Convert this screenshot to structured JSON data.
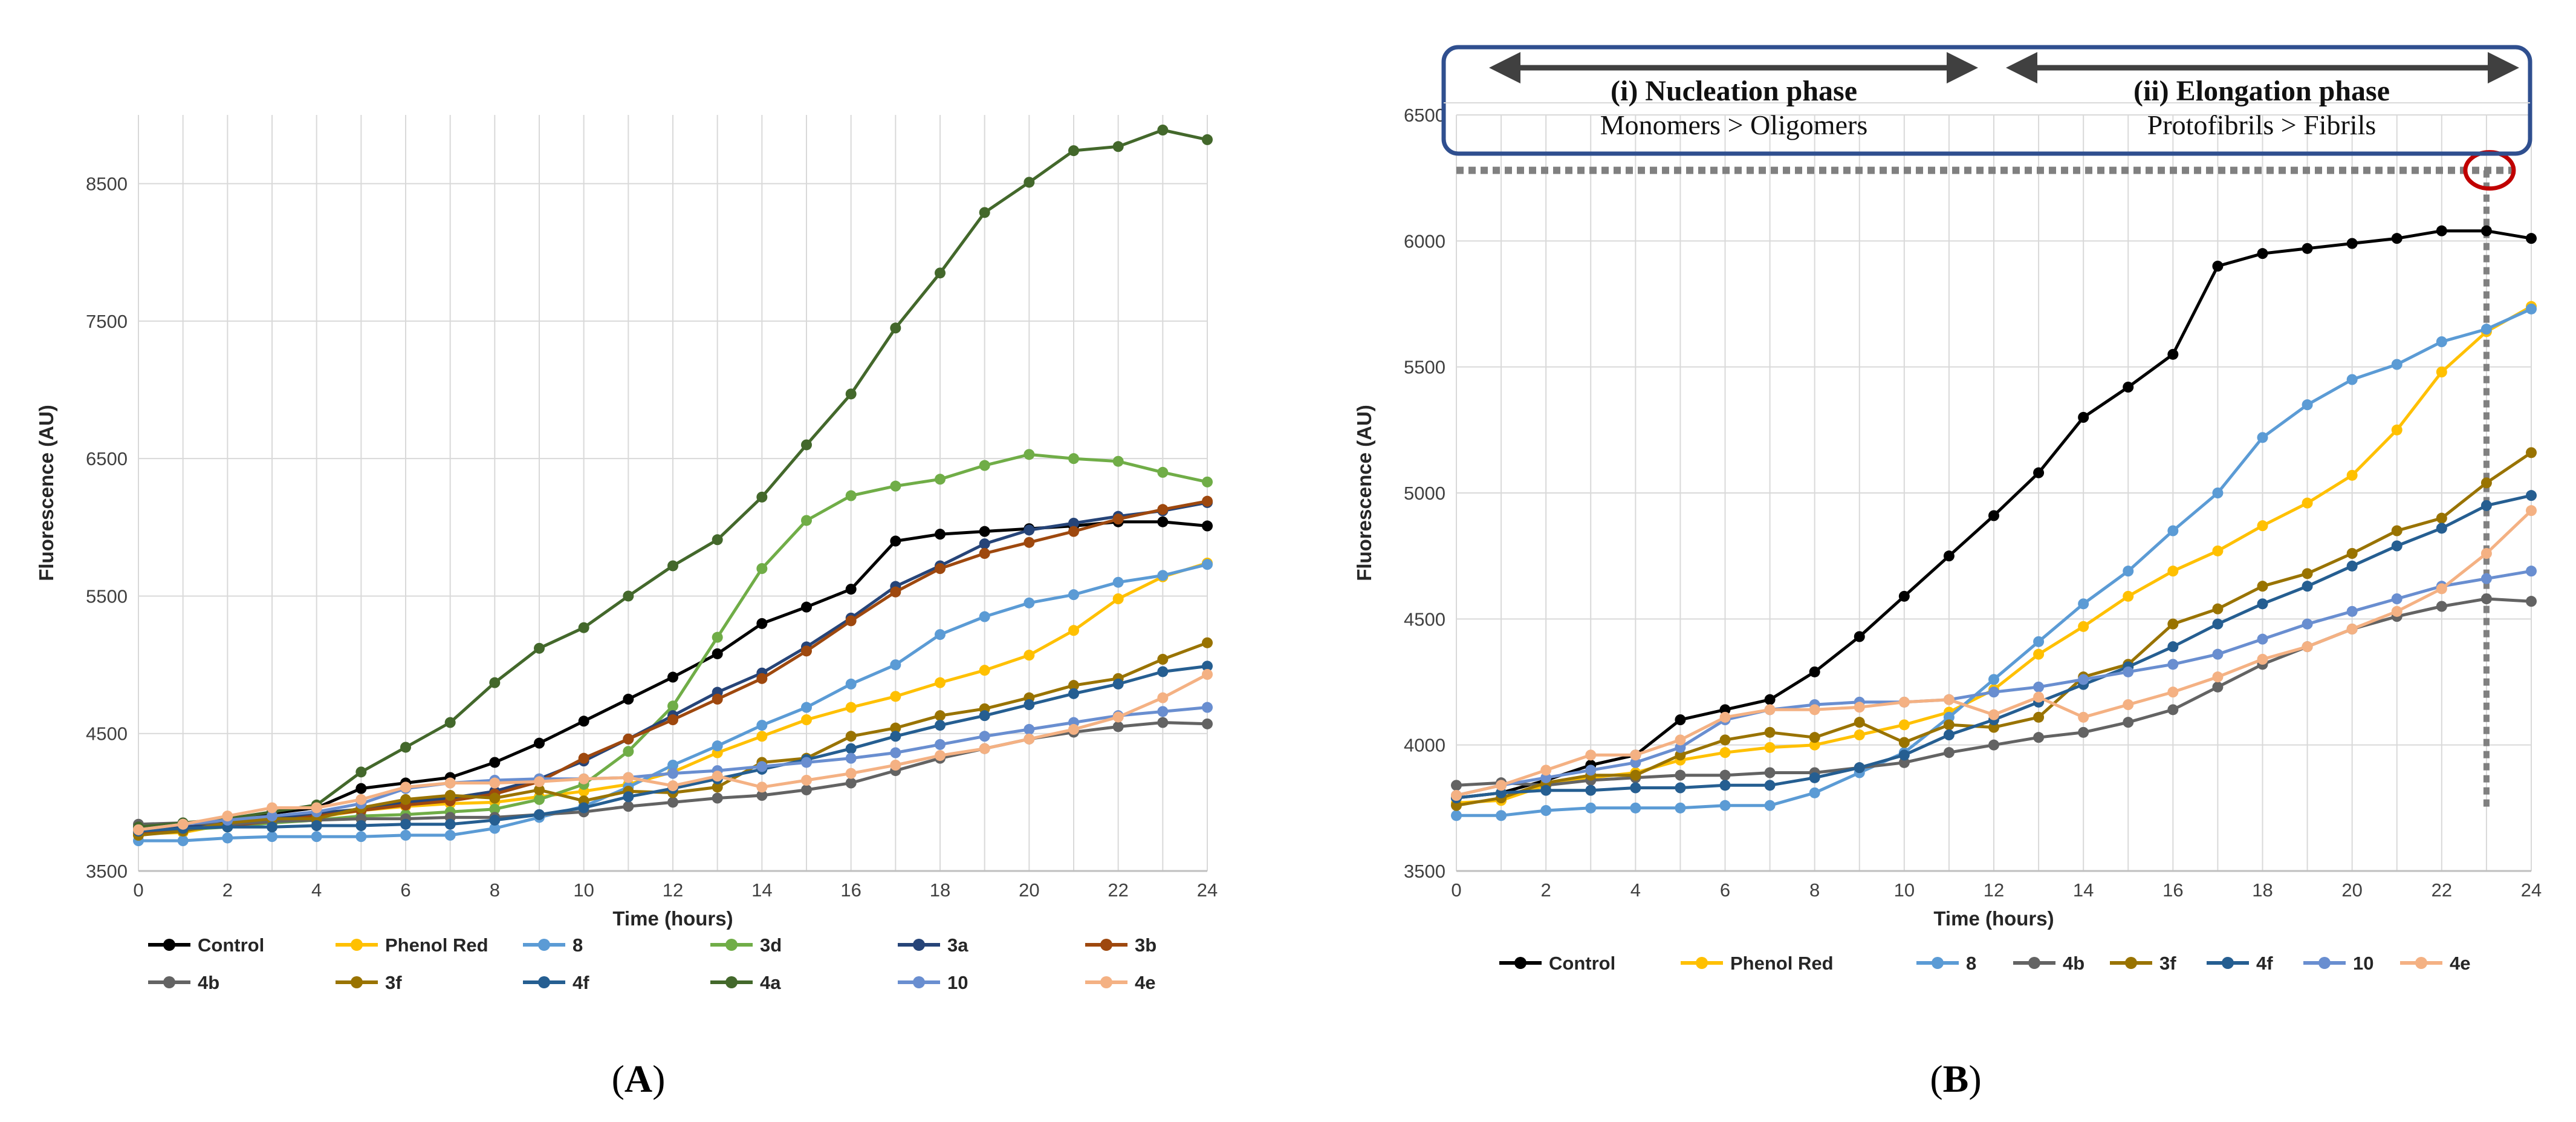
{
  "figure": {
    "panel_a_caption": {
      "open": "(",
      "letter": "A",
      "close": ")"
    },
    "panel_b_caption": {
      "open": "(",
      "letter": "B",
      "close": ")"
    },
    "phases": {
      "nucleation_title": "(i) Nucleation phase",
      "nucleation_sub": "Monomers > Oligomers",
      "elongation_title": "(ii) Elongation phase",
      "elongation_sub": "Protofibrils > Fibrils"
    }
  },
  "chart_data": [
    {
      "type": "line",
      "panel": "A",
      "title": "",
      "xlabel": "Time (hours)",
      "ylabel": "Fluorescence (AU)",
      "xlim": [
        0,
        24
      ],
      "ylim": [
        3500,
        9000
      ],
      "xticks": [
        0,
        2,
        4,
        6,
        8,
        10,
        12,
        14,
        16,
        18,
        20,
        22,
        24
      ],
      "yticks": [
        3500,
        4500,
        5500,
        6500,
        7500,
        8500
      ],
      "x": [
        0,
        1,
        2,
        3,
        4,
        5,
        6,
        7,
        8,
        9,
        10,
        11,
        12,
        13,
        14,
        15,
        16,
        17,
        18,
        19,
        20,
        21,
        22,
        23,
        24
      ],
      "grid": "vertical and horizontal",
      "legend_position": "bottom",
      "series": [
        {
          "name": "Control",
          "color": "#000000",
          "values": [
            3790,
            3810,
            3860,
            3920,
            3960,
            4100,
            4140,
            4180,
            4290,
            4430,
            4590,
            4750,
            4910,
            5080,
            5300,
            5420,
            5550,
            5900,
            5950,
            5970,
            5990,
            6010,
            6040,
            6040,
            6010
          ]
        },
        {
          "name": "Phenol Red",
          "color": "#ffc000",
          "values": [
            3770,
            3780,
            3840,
            3870,
            3890,
            3940,
            3970,
            3990,
            4000,
            4040,
            4080,
            4130,
            4220,
            4360,
            4480,
            4600,
            4690,
            4770,
            4870,
            4960,
            5070,
            5250,
            5480,
            5640,
            5740
          ]
        },
        {
          "name": "8",
          "color": "#5b9bd5",
          "values": [
            3720,
            3720,
            3740,
            3750,
            3750,
            3750,
            3760,
            3760,
            3810,
            3890,
            3970,
            4110,
            4270,
            4410,
            4560,
            4690,
            4860,
            5000,
            5220,
            5350,
            5450,
            5510,
            5600,
            5650,
            5730
          ]
        },
        {
          "name": "3d",
          "color": "#70ad47",
          "values": [
            3790,
            3800,
            3820,
            3850,
            3870,
            3900,
            3910,
            3930,
            3950,
            4020,
            4130,
            4370,
            4700,
            5200,
            5700,
            6050,
            6230,
            6300,
            6350,
            6450,
            6530,
            6500,
            6480,
            6400,
            6330
          ]
        },
        {
          "name": "3a",
          "color": "#264478",
          "values": [
            3800,
            3820,
            3840,
            3880,
            3920,
            3950,
            4000,
            4030,
            4080,
            4170,
            4300,
            4460,
            4630,
            4800,
            4940,
            5130,
            5340,
            5570,
            5720,
            5880,
            5980,
            6030,
            6080,
            6120,
            6180
          ]
        },
        {
          "name": "3b",
          "color": "#9e480e",
          "values": [
            3780,
            3800,
            3830,
            3860,
            3900,
            3940,
            3980,
            4010,
            4060,
            4150,
            4320,
            4460,
            4600,
            4750,
            4900,
            5100,
            5320,
            5530,
            5700,
            5810,
            5890,
            5970,
            6060,
            6130,
            6190
          ]
        },
        {
          "name": "4b",
          "color": "#636363",
          "values": [
            3840,
            3850,
            3840,
            3860,
            3870,
            3880,
            3880,
            3890,
            3890,
            3910,
            3930,
            3970,
            4000,
            4030,
            4050,
            4090,
            4140,
            4230,
            4320,
            4390,
            4460,
            4510,
            4550,
            4580,
            4570
          ]
        },
        {
          "name": "3f",
          "color": "#997300",
          "values": [
            3760,
            3790,
            3850,
            3880,
            3880,
            3960,
            4020,
            4050,
            4030,
            4090,
            4010,
            4080,
            4070,
            4110,
            4290,
            4320,
            4480,
            4540,
            4630,
            4680,
            4760,
            4850,
            4900,
            5040,
            5160
          ]
        },
        {
          "name": "4f",
          "color": "#255e91",
          "values": [
            3790,
            3810,
            3820,
            3820,
            3830,
            3830,
            3840,
            3840,
            3870,
            3910,
            3960,
            4040,
            4100,
            4170,
            4240,
            4310,
            4390,
            4480,
            4560,
            4630,
            4710,
            4790,
            4860,
            4950,
            4990
          ]
        },
        {
          "name": "4a",
          "color": "#43682b",
          "values": [
            3820,
            3850,
            3880,
            3930,
            3980,
            4220,
            4400,
            4580,
            4870,
            5120,
            5270,
            5500,
            5720,
            5910,
            6220,
            6600,
            6970,
            7450,
            7850,
            8290,
            8510,
            8740,
            8770,
            8890,
            8820
          ]
        },
        {
          "name": "10",
          "color": "#698ed0",
          "values": [
            3800,
            3840,
            3870,
            3900,
            3930,
            3990,
            4100,
            4140,
            4160,
            4170,
            4170,
            4180,
            4210,
            4230,
            4260,
            4290,
            4320,
            4360,
            4420,
            4480,
            4530,
            4580,
            4630,
            4660,
            4690
          ]
        },
        {
          "name": "4e",
          "color": "#f4b183",
          "values": [
            3800,
            3840,
            3900,
            3960,
            3960,
            4020,
            4110,
            4140,
            4140,
            4150,
            4170,
            4180,
            4120,
            4190,
            4110,
            4160,
            4210,
            4270,
            4340,
            4390,
            4460,
            4530,
            4620,
            4760,
            4930
          ]
        }
      ]
    },
    {
      "type": "line",
      "panel": "B",
      "title": "",
      "xlabel": "Time (hours)",
      "ylabel": "Fluorescence (AU)",
      "xlim": [
        0,
        24
      ],
      "ylim": [
        3500,
        6500
      ],
      "xticks": [
        0,
        2,
        4,
        6,
        8,
        10,
        12,
        14,
        16,
        18,
        20,
        22,
        24
      ],
      "yticks": [
        3500,
        4000,
        4500,
        5000,
        5500,
        6000,
        6500
      ],
      "x": [
        0,
        1,
        2,
        3,
        4,
        5,
        6,
        7,
        8,
        9,
        10,
        11,
        12,
        13,
        14,
        15,
        16,
        17,
        18,
        19,
        20,
        21,
        22,
        23,
        24
      ],
      "grid": "vertical and horizontal",
      "legend_position": "bottom",
      "annotations": {
        "phase_boundary_x": 12,
        "plateau_y": 6280,
        "marked_point_x": 23
      },
      "series": [
        {
          "name": "Control",
          "color": "#000000",
          "values": [
            3790,
            3810,
            3860,
            3920,
            3960,
            4100,
            4140,
            4180,
            4290,
            4430,
            4590,
            4750,
            4910,
            5080,
            5300,
            5420,
            5550,
            5900,
            5950,
            5970,
            5990,
            6010,
            6040,
            6040,
            6010
          ]
        },
        {
          "name": "Phenol Red",
          "color": "#ffc000",
          "values": [
            3770,
            3780,
            3840,
            3870,
            3890,
            3940,
            3970,
            3990,
            4000,
            4040,
            4080,
            4130,
            4220,
            4360,
            4470,
            4590,
            4690,
            4770,
            4870,
            4960,
            5070,
            5250,
            5480,
            5640,
            5740
          ]
        },
        {
          "name": "8",
          "color": "#5b9bd5",
          "values": [
            3720,
            3720,
            3740,
            3750,
            3750,
            3750,
            3760,
            3760,
            3810,
            3890,
            3970,
            4110,
            4260,
            4410,
            4560,
            4690,
            4850,
            5000,
            5220,
            5350,
            5450,
            5510,
            5600,
            5650,
            5730
          ]
        },
        {
          "name": "4b",
          "color": "#636363",
          "values": [
            3840,
            3850,
            3840,
            3860,
            3870,
            3880,
            3880,
            3890,
            3890,
            3910,
            3930,
            3970,
            4000,
            4030,
            4050,
            4090,
            4140,
            4230,
            4320,
            4390,
            4460,
            4510,
            4550,
            4580,
            4570
          ]
        },
        {
          "name": "3f",
          "color": "#997300",
          "values": [
            3760,
            3790,
            3850,
            3880,
            3880,
            3960,
            4020,
            4050,
            4030,
            4090,
            4010,
            4080,
            4070,
            4110,
            4270,
            4320,
            4480,
            4540,
            4630,
            4680,
            4760,
            4850,
            4900,
            5040,
            5160
          ]
        },
        {
          "name": "4f",
          "color": "#255e91",
          "values": [
            3790,
            3810,
            3820,
            3820,
            3830,
            3830,
            3840,
            3840,
            3870,
            3910,
            3960,
            4040,
            4100,
            4170,
            4240,
            4310,
            4390,
            4480,
            4560,
            4630,
            4710,
            4790,
            4860,
            4950,
            4990
          ]
        },
        {
          "name": "10",
          "color": "#698ed0",
          "values": [
            3800,
            3840,
            3870,
            3900,
            3930,
            3990,
            4100,
            4140,
            4160,
            4170,
            4170,
            4180,
            4210,
            4230,
            4260,
            4290,
            4320,
            4360,
            4420,
            4480,
            4530,
            4580,
            4630,
            4660,
            4690
          ]
        },
        {
          "name": "4e",
          "color": "#f4b183",
          "values": [
            3800,
            3840,
            3900,
            3960,
            3960,
            4020,
            4110,
            4140,
            4140,
            4150,
            4170,
            4180,
            4120,
            4190,
            4110,
            4160,
            4210,
            4270,
            4340,
            4390,
            4460,
            4530,
            4620,
            4760,
            4930
          ]
        }
      ]
    }
  ]
}
